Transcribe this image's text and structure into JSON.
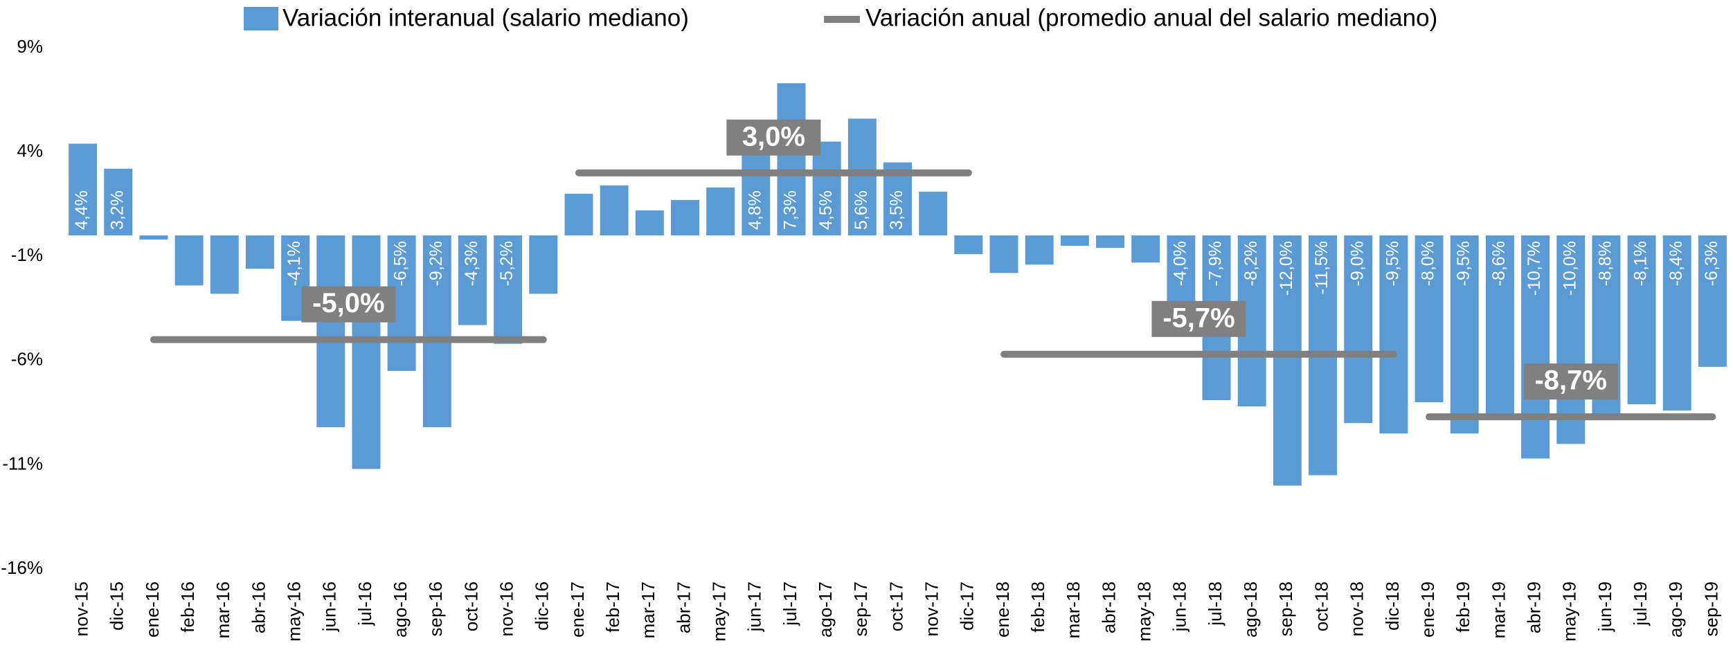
{
  "chart_data": {
    "type": "bar",
    "categories": [
      "nov-15",
      "dic-15",
      "ene-16",
      "feb-16",
      "mar-16",
      "abr-16",
      "may-16",
      "jun-16",
      "jul-16",
      "ago-16",
      "sep-16",
      "oct-16",
      "nov-16",
      "dic-16",
      "ene-17",
      "feb-17",
      "mar-17",
      "abr-17",
      "may-17",
      "jun-17",
      "jul-17",
      "ago-17",
      "sep-17",
      "oct-17",
      "nov-17",
      "dic-17",
      "ene-18",
      "feb-18",
      "mar-18",
      "abr-18",
      "may-18",
      "jun-18",
      "jul-18",
      "ago-18",
      "sep-18",
      "oct-18",
      "nov-18",
      "dic-18",
      "ene-19",
      "feb-19",
      "mar-19",
      "abr-19",
      "may-19",
      "jun-19",
      "jul-19",
      "ago-19",
      "sep-19"
    ],
    "series": [
      {
        "name": "Variación interanual (salario mediano)",
        "color": "#5b9bd5",
        "values": [
          4.4,
          3.2,
          -0.2,
          -2.4,
          -2.8,
          -1.6,
          -4.1,
          -9.2,
          -11.2,
          -6.5,
          -9.2,
          -4.3,
          -5.2,
          -2.8,
          2.0,
          2.4,
          1.2,
          1.7,
          2.3,
          4.8,
          7.3,
          4.5,
          5.6,
          3.5,
          2.1,
          -0.9,
          -1.8,
          -1.4,
          -0.5,
          -0.6,
          -1.3,
          -4.0,
          -7.9,
          -8.2,
          -12.0,
          -11.5,
          -9.0,
          -9.5,
          -8.0,
          -9.5,
          -8.6,
          -10.7,
          -10.0,
          -8.8,
          -8.1,
          -8.4,
          -6.3
        ],
        "value_labels": [
          "4,4%",
          "3,2%",
          null,
          null,
          null,
          null,
          "-4,1%",
          null,
          null,
          "-6,5%",
          "-9,2%",
          "-4,3%",
          "-5,2%",
          null,
          null,
          null,
          null,
          null,
          null,
          "4,8%",
          "7,3%",
          "4,5%",
          "5,6%",
          "3,5%",
          null,
          null,
          null,
          null,
          null,
          null,
          null,
          "-4,0%",
          "-7,9%",
          "-8,2%",
          "-12,0%",
          "-11,5%",
          "-9,0%",
          "-9,5%",
          "-8,0%",
          "-9,5%",
          "-8,6%",
          "-10,7%",
          "-10,0%",
          "-8,8%",
          "-8,1%",
          "-8,4%",
          "-6,3%"
        ]
      },
      {
        "name": "Variación anual (promedio anual del salario mediano)",
        "color": "#808080",
        "type": "line",
        "segments": [
          {
            "value": -5.0,
            "label": "-5,0%",
            "from": "ene-16",
            "to": "dic-16"
          },
          {
            "value": 3.0,
            "label": "3,0%",
            "from": "ene-17",
            "to": "dic-17"
          },
          {
            "value": -5.7,
            "label": "-5,7%",
            "from": "ene-18",
            "to": "dic-18"
          },
          {
            "value": -8.7,
            "label": "-8,7%",
            "from": "ene-19",
            "to": "sep-19"
          }
        ]
      }
    ],
    "ylim": [
      -16,
      9
    ],
    "yticks": [
      {
        "value": 9,
        "label": "9%"
      },
      {
        "value": 4,
        "label": "4%"
      },
      {
        "value": -1,
        "label": "-1%"
      },
      {
        "value": -6,
        "label": "-6%"
      },
      {
        "value": -11,
        "label": "-11%"
      },
      {
        "value": -16,
        "label": "-16%"
      }
    ],
    "grid": false,
    "legend": "top"
  }
}
